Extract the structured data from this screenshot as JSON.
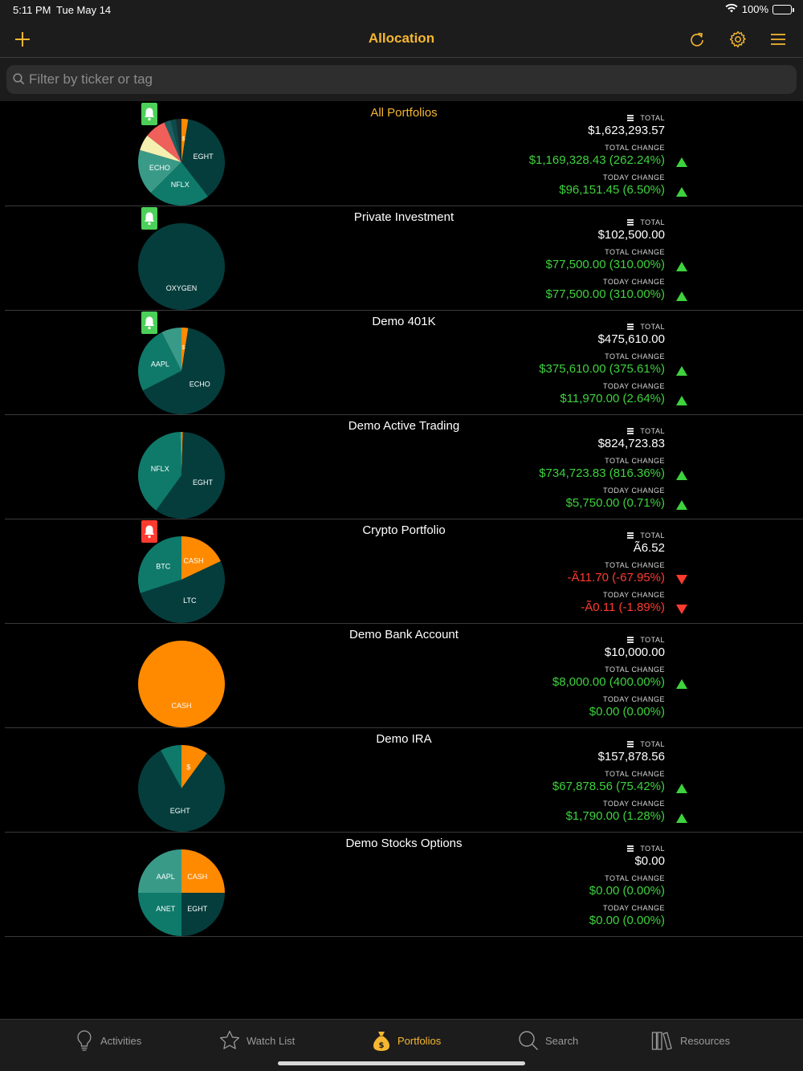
{
  "status": {
    "time": "5:11 PM",
    "date": "Tue May 14",
    "battery": "100%"
  },
  "nav": {
    "title": "Allocation"
  },
  "search": {
    "placeholder": "Filter by ticker or tag"
  },
  "labels": {
    "total": "TOTAL",
    "total_change": "TOTAL CHANGE",
    "today_change": "TODAY CHANGE"
  },
  "colors": {
    "accent": "#f5b731",
    "gain": "#3ed23e",
    "loss": "#ff3b30",
    "alert_on": "#4cd05a",
    "alert_triggered": "#ff3b30",
    "orange": "#ff8a00",
    "teal": "#0f7a6a",
    "dark_teal": "#053d3d",
    "light_teal": "#3a9a88"
  },
  "portfolios": [
    {
      "name": "All Portfolios",
      "alert": "on",
      "total": "$1,623,293.57",
      "total_change": "$1,169,328.43 (262.24%)",
      "total_dir": "up",
      "today_change": "$96,151.45 (6.50%)",
      "today_dir": "up",
      "allocation": [
        {
          "label": "$",
          "value": 2.5,
          "color": "#ff8a00"
        },
        {
          "label": "EGHT",
          "value": 37,
          "color": "#053d3d"
        },
        {
          "label": "NFLX",
          "value": 23,
          "color": "#0f7a6a"
        },
        {
          "label": "ECHO",
          "value": 17,
          "color": "#3a9a88"
        },
        {
          "label": "",
          "value": 6,
          "color": "#f5f0b0"
        },
        {
          "label": "",
          "value": 8,
          "color": "#f0605a"
        },
        {
          "label": "",
          "value": 2.5,
          "color": "#1a5f5f"
        },
        {
          "label": "",
          "value": 2,
          "color": "#0d4a4a"
        },
        {
          "label": "",
          "value": 2,
          "color": "#1e2e2e"
        }
      ]
    },
    {
      "name": "Private Investment",
      "alert": "on",
      "total": "$102,500.00",
      "total_change": "$77,500.00 (310.00%)",
      "total_dir": "up",
      "today_change": "$77,500.00 (310.00%)",
      "today_dir": "up",
      "allocation": [
        {
          "label": "OXYGEN",
          "value": 100,
          "color": "#053d3d"
        }
      ]
    },
    {
      "name": "Demo 401K",
      "alert": "on",
      "total": "$475,610.00",
      "total_change": "$375,610.00 (375.61%)",
      "total_dir": "up",
      "today_change": "$11,970.00 (2.64%)",
      "today_dir": "up",
      "allocation": [
        {
          "label": "$",
          "value": 2.5,
          "color": "#ff8a00"
        },
        {
          "label": "ECHO",
          "value": 65,
          "color": "#053d3d"
        },
        {
          "label": "AAPL",
          "value": 25,
          "color": "#0f7a6a"
        },
        {
          "label": "",
          "value": 7.5,
          "color": "#3a9a88"
        }
      ]
    },
    {
      "name": "Demo Active Trading",
      "alert": "none",
      "total": "$824,723.83",
      "total_change": "$734,723.83 (816.36%)",
      "total_dir": "up",
      "today_change": "$5,750.00 (0.71%)",
      "today_dir": "up",
      "allocation": [
        {
          "label": "",
          "value": 0.5,
          "color": "#ff8a00"
        },
        {
          "label": "EGHT",
          "value": 59.5,
          "color": "#053d3d"
        },
        {
          "label": "NFLX",
          "value": 39.5,
          "color": "#0f7a6a"
        },
        {
          "label": "",
          "value": 0.5,
          "color": "#3a9a88"
        }
      ]
    },
    {
      "name": "Crypto Portfolio",
      "alert": "triggered",
      "total": "Ã6.52",
      "total_change": "-Ã11.70 (-67.95%)",
      "total_dir": "down",
      "today_change": "-Ã0.11 (-1.89%)",
      "today_dir": "down",
      "allocation": [
        {
          "label": "CASH",
          "value": 18,
          "color": "#ff8a00"
        },
        {
          "label": "LTC",
          "value": 52,
          "color": "#053d3d"
        },
        {
          "label": "BTC",
          "value": 30,
          "color": "#0f7a6a"
        }
      ]
    },
    {
      "name": "Demo Bank Account",
      "alert": "none",
      "total": "$10,000.00",
      "total_change": "$8,000.00 (400.00%)",
      "total_dir": "up",
      "today_change": "$0.00 (0.00%)",
      "today_dir": "none",
      "allocation": [
        {
          "label": "CASH",
          "value": 100,
          "color": "#ff8a00"
        }
      ]
    },
    {
      "name": "Demo IRA",
      "alert": "none",
      "total": "$157,878.56",
      "total_change": "$67,878.56 (75.42%)",
      "total_dir": "up",
      "today_change": "$1,790.00 (1.28%)",
      "today_dir": "up",
      "allocation": [
        {
          "label": "$",
          "value": 10,
          "color": "#ff8a00"
        },
        {
          "label": "EGHT",
          "value": 82,
          "color": "#053d3d"
        },
        {
          "label": "",
          "value": 8,
          "color": "#0f7a6a"
        }
      ]
    },
    {
      "name": "Demo Stocks Options",
      "alert": "none",
      "total": "$0.00",
      "total_change": "$0.00 (0.00%)",
      "total_dir": "none",
      "today_change": "$0.00 (0.00%)",
      "today_dir": "none",
      "allocation": [
        {
          "label": "CASH",
          "value": 25,
          "color": "#ff8a00"
        },
        {
          "label": "EGHT",
          "value": 25,
          "color": "#053d3d"
        },
        {
          "label": "ANET",
          "value": 25,
          "color": "#0f7a6a"
        },
        {
          "label": "AAPL",
          "value": 25,
          "color": "#3a9a88"
        }
      ]
    }
  ],
  "tabs": [
    {
      "label": "Activities",
      "icon": "lightbulb-icon",
      "active": false
    },
    {
      "label": "Watch List",
      "icon": "star-icon",
      "active": false
    },
    {
      "label": "Portfolios",
      "icon": "money-bag-icon",
      "active": true
    },
    {
      "label": "Search",
      "icon": "search-icon",
      "active": false
    },
    {
      "label": "Resources",
      "icon": "books-icon",
      "active": false
    }
  ]
}
